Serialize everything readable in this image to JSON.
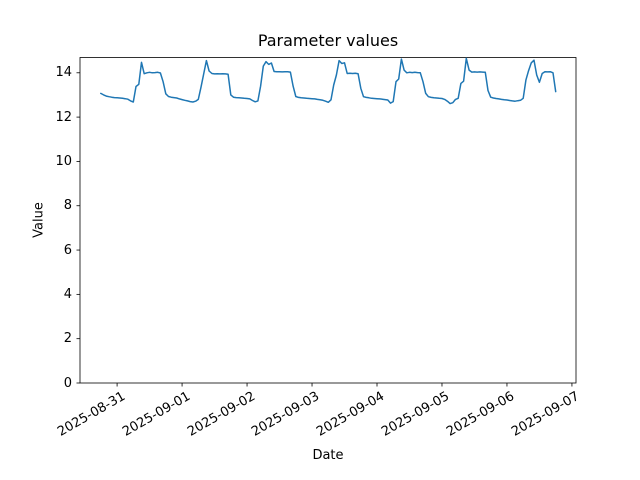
{
  "figure": {
    "background_color": "#ffffff",
    "axis_color": "#000000",
    "text_color": "#000000"
  },
  "chart_data": {
    "type": "line",
    "title": "Parameter values",
    "xlabel": "Date",
    "ylabel": "Value",
    "legend": null,
    "grid": false,
    "line_color": "#1f77b4",
    "line_width": 1.5,
    "x_start": "2025-08-30 18:00",
    "x_step_hours": 1,
    "x_tick_hours": [
      6,
      30,
      54,
      78,
      102,
      126,
      150,
      174
    ],
    "x_tick_labels": [
      "2025-08-31",
      "2025-09-01",
      "2025-09-02",
      "2025-09-03",
      "2025-09-04",
      "2025-09-05",
      "2025-09-06",
      "2025-09-07"
    ],
    "y_ticks": [
      0,
      2,
      4,
      6,
      8,
      10,
      12,
      14
    ],
    "xlim_hours": [
      -7.7,
      175.5
    ],
    "ylim": [
      0,
      14.69
    ],
    "values": [
      13.07,
      13.0,
      12.95,
      12.92,
      12.9,
      12.88,
      12.87,
      12.86,
      12.85,
      12.83,
      12.81,
      12.73,
      12.68,
      13.38,
      13.48,
      14.47,
      13.96,
      14.0,
      14.02,
      14.0,
      14.01,
      14.02,
      13.99,
      13.6,
      13.05,
      12.93,
      12.9,
      12.88,
      12.86,
      12.82,
      12.79,
      12.76,
      12.73,
      12.7,
      12.68,
      12.72,
      12.8,
      13.35,
      13.95,
      14.55,
      14.08,
      13.97,
      13.95,
      13.96,
      13.95,
      13.96,
      13.95,
      13.93,
      13.0,
      12.9,
      12.88,
      12.87,
      12.86,
      12.85,
      12.84,
      12.82,
      12.75,
      12.69,
      12.73,
      13.4,
      14.3,
      14.5,
      14.38,
      14.44,
      14.06,
      14.05,
      14.05,
      14.04,
      14.05,
      14.05,
      14.03,
      13.4,
      12.93,
      12.89,
      12.87,
      12.86,
      12.85,
      12.84,
      12.83,
      12.82,
      12.8,
      12.78,
      12.76,
      12.72,
      12.67,
      12.78,
      13.45,
      13.9,
      14.55,
      14.42,
      14.45,
      13.97,
      13.98,
      13.97,
      13.98,
      13.96,
      13.3,
      12.92,
      12.89,
      12.87,
      12.85,
      12.84,
      12.83,
      12.82,
      12.81,
      12.79,
      12.77,
      12.63,
      12.7,
      13.6,
      13.72,
      14.62,
      14.12,
      14.0,
      14.02,
      14.01,
      14.02,
      14.01,
      14.0,
      13.6,
      13.07,
      12.92,
      12.89,
      12.87,
      12.86,
      12.85,
      12.84,
      12.8,
      12.72,
      12.61,
      12.65,
      12.8,
      12.85,
      13.52,
      13.62,
      14.65,
      14.12,
      14.03,
      14.04,
      14.03,
      14.04,
      14.03,
      14.02,
      13.2,
      12.9,
      12.86,
      12.84,
      12.82,
      12.8,
      12.78,
      12.77,
      12.75,
      12.73,
      12.72,
      12.74,
      12.76,
      12.85,
      13.67,
      14.1,
      14.45,
      14.57,
      13.9,
      13.57,
      13.97,
      14.05,
      14.04,
      14.05,
      14.0,
      13.15
    ]
  }
}
